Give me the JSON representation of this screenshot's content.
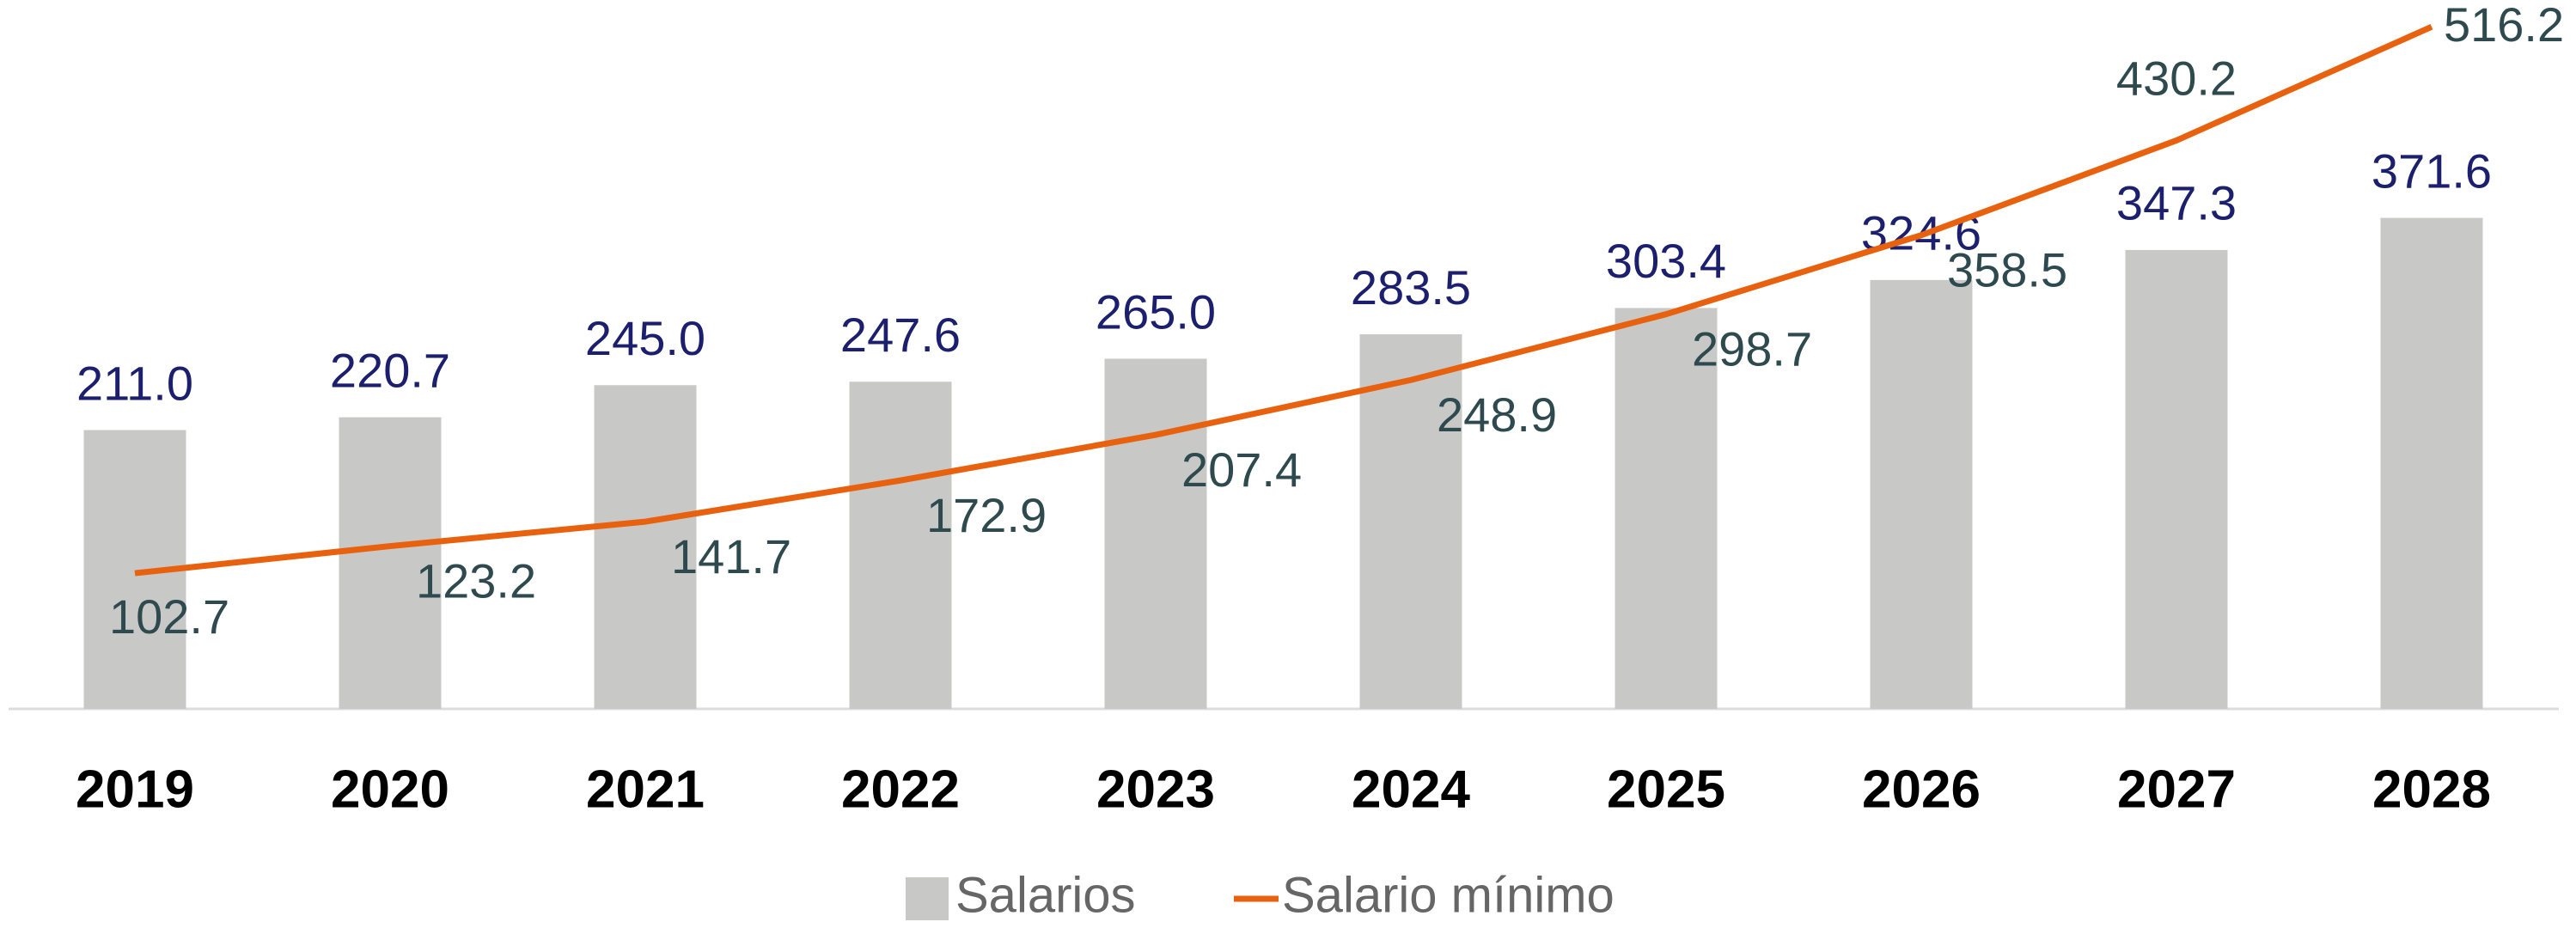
{
  "chart_data": {
    "type": "bar_line",
    "categories": [
      "2019",
      "2020",
      "2021",
      "2022",
      "2023",
      "2024",
      "2025",
      "2026",
      "2027",
      "2028"
    ],
    "series": [
      {
        "name": "Salarios",
        "type": "bar",
        "color": "#c8c8c6",
        "values": [
          211.0,
          220.7,
          245.0,
          247.6,
          265.0,
          283.5,
          303.4,
          324.6,
          347.3,
          371.6
        ],
        "value_labels": [
          "211.0",
          "220.7",
          "245.0",
          "247.6",
          "265.0",
          "283.5",
          "303.4",
          "324.6",
          "347.3",
          "371.6"
        ]
      },
      {
        "name": "Salario mínimo",
        "type": "line",
        "color": "#e8610f",
        "values": [
          102.7,
          123.2,
          141.7,
          172.9,
          207.4,
          248.9,
          298.7,
          358.5,
          430.2,
          516.2
        ],
        "value_labels": [
          "102.7",
          "123.2",
          "141.7",
          "172.9",
          "207.4",
          "248.9",
          "298.7",
          "358.5",
          "430.2",
          "516.2"
        ]
      }
    ],
    "ylim": [
      0,
      530
    ],
    "legend": "bottom"
  }
}
